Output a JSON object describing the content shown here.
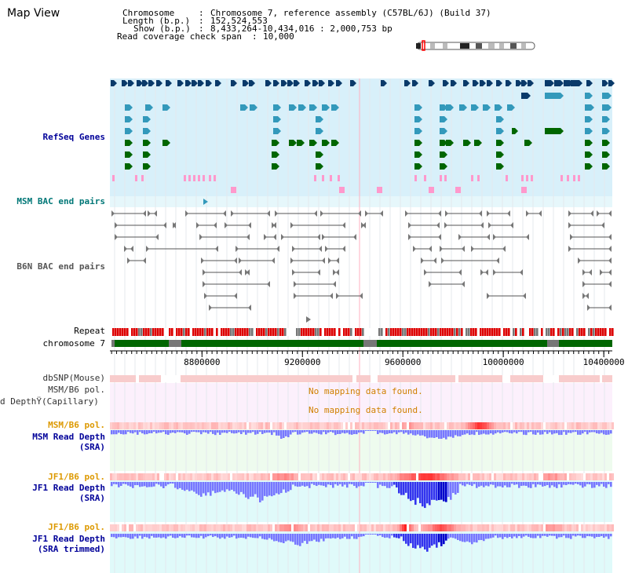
{
  "title": "Map View",
  "info": {
    "chromosome_label": "Chromosome",
    "chromosome_value": "Chromosome 7, reference assembly (C57BL/6J) (Build 37)",
    "length_label": "Length (b.p.)",
    "length_value": "152,524,553",
    "show_label": "Show (b.p.)",
    "show_value": "8,433,264-10,434,016 : 2,000,753 bp",
    "coverage_label": "Read coverage check span",
    "coverage_value": "10,000"
  },
  "tracks": {
    "refseq": "RefSeq Genes",
    "msm_bac": "MSM BAC end pairs",
    "b6n_bac": "B6N BAC end pairs",
    "repeat": "Repeat",
    "chromosome": "chromosome 7",
    "dbsnp": "dbSNP(Mouse)",
    "msm_pol": "MSM/B6 pol.",
    "depth_capillary": "d DepthŸ(Capillary)",
    "msm_pol2": "MSM/B6 pol.",
    "msm_depth_1": "MSM Read Depth",
    "msm_depth_2": "(SRA)",
    "jf1_pol": "JF1/B6 pol.",
    "jf1_depth_1": "JF1 Read Depth",
    "jf1_depth_2": "(SRA)",
    "jf1_pol2": "JF1/B6 pol.",
    "jf1_trim_1": "JF1 Read Depth",
    "jf1_trim_2": "(SRA trimmed)"
  },
  "no_mapping_1": "No mapping data found.",
  "no_mapping_2": "No mapping data found.",
  "axis": {
    "ticks": [
      {
        "value": 8800000,
        "label": "8800000"
      },
      {
        "value": 9200000,
        "label": "9200000"
      },
      {
        "value": 9600000,
        "label": "9600000"
      },
      {
        "value": 10000000,
        "label": "10000000"
      },
      {
        "value": 10400000,
        "label": "10400000"
      }
    ],
    "start": 8433264,
    "end": 10434016
  },
  "colors": {
    "gene_navy": "#0a3a6a",
    "gene_blue": "#3399bb",
    "gene_green": "#006600",
    "pink": "#ff99cc",
    "repeat_red": "#dd0000",
    "chrom_green": "#006600",
    "depth_blue": "#7777ff"
  }
}
